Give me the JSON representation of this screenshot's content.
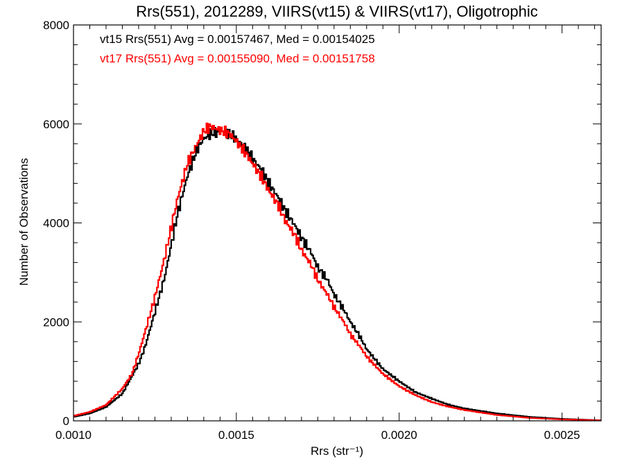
{
  "chart_data": {
    "type": "line",
    "title": "Rrs(551), 2012289, VIIRS(vt15) & VIIRS(vt17), Oligotrophic",
    "xlabel": "Rrs (str⁻¹)",
    "ylabel": "Number of Observations",
    "xlim": [
      0.001,
      0.00262
    ],
    "ylim": [
      0,
      8000
    ],
    "x_ticks": [
      0.001,
      0.0015,
      0.002,
      0.0025
    ],
    "x_tick_labels": [
      "0.0010",
      "0.0015",
      "0.0020",
      "0.0025"
    ],
    "y_ticks": [
      0,
      2000,
      4000,
      6000,
      8000
    ],
    "y_tick_labels": [
      "0",
      "2000",
      "4000",
      "6000",
      "8000"
    ],
    "grid": false,
    "legend_position": "top-left",
    "step_style": "histogram",
    "series": [
      {
        "name": "vt15 Rrs(551) Avg = 0.00157467, Med = 0.00154025",
        "color": "#000000",
        "x": [
          0.001,
          0.00105,
          0.0011,
          0.00115,
          0.0012,
          0.00122,
          0.00125,
          0.00128,
          0.0013,
          0.00132,
          0.00135,
          0.00138,
          0.0014,
          0.00142,
          0.00145,
          0.00148,
          0.0015,
          0.00153,
          0.00155,
          0.00158,
          0.0016,
          0.00163,
          0.00165,
          0.00168,
          0.0017,
          0.00173,
          0.00175,
          0.00178,
          0.0018,
          0.00183,
          0.00185,
          0.00188,
          0.0019,
          0.00195,
          0.002,
          0.00205,
          0.0021,
          0.00215,
          0.0022,
          0.0023,
          0.0024,
          0.0025,
          0.00262
        ],
        "values": [
          80,
          150,
          280,
          550,
          1150,
          1500,
          2200,
          2900,
          3550,
          4200,
          4950,
          5500,
          5700,
          5800,
          5850,
          5800,
          5700,
          5500,
          5300,
          5050,
          4800,
          4500,
          4250,
          3950,
          3700,
          3400,
          3100,
          2850,
          2550,
          2250,
          2000,
          1700,
          1450,
          1050,
          800,
          580,
          450,
          330,
          250,
          150,
          80,
          40,
          10
        ]
      },
      {
        "name": "vt17 Rrs(551) Avg = 0.00155090, Med = 0.00151758",
        "color": "#ff0000",
        "x": [
          0.001,
          0.00105,
          0.0011,
          0.00115,
          0.00118,
          0.0012,
          0.00122,
          0.00125,
          0.00128,
          0.0013,
          0.00132,
          0.00135,
          0.00138,
          0.0014,
          0.00142,
          0.00144,
          0.00146,
          0.00148,
          0.0015,
          0.00153,
          0.00155,
          0.00158,
          0.0016,
          0.00163,
          0.00165,
          0.00168,
          0.0017,
          0.00173,
          0.00175,
          0.00178,
          0.0018,
          0.00183,
          0.00185,
          0.00188,
          0.0019,
          0.00195,
          0.002,
          0.00205,
          0.0021,
          0.00215,
          0.0022,
          0.0023,
          0.0024,
          0.0025,
          0.00262
        ],
        "values": [
          100,
          180,
          320,
          650,
          950,
          1350,
          1800,
          2500,
          3300,
          3900,
          4500,
          5200,
          5600,
          5850,
          5950,
          5900,
          5850,
          5800,
          5650,
          5400,
          5200,
          4900,
          4650,
          4350,
          4050,
          3750,
          3450,
          3150,
          2850,
          2550,
          2300,
          2000,
          1750,
          1500,
          1300,
          950,
          700,
          520,
          380,
          290,
          220,
          120,
          60,
          30,
          8
        ]
      }
    ]
  }
}
